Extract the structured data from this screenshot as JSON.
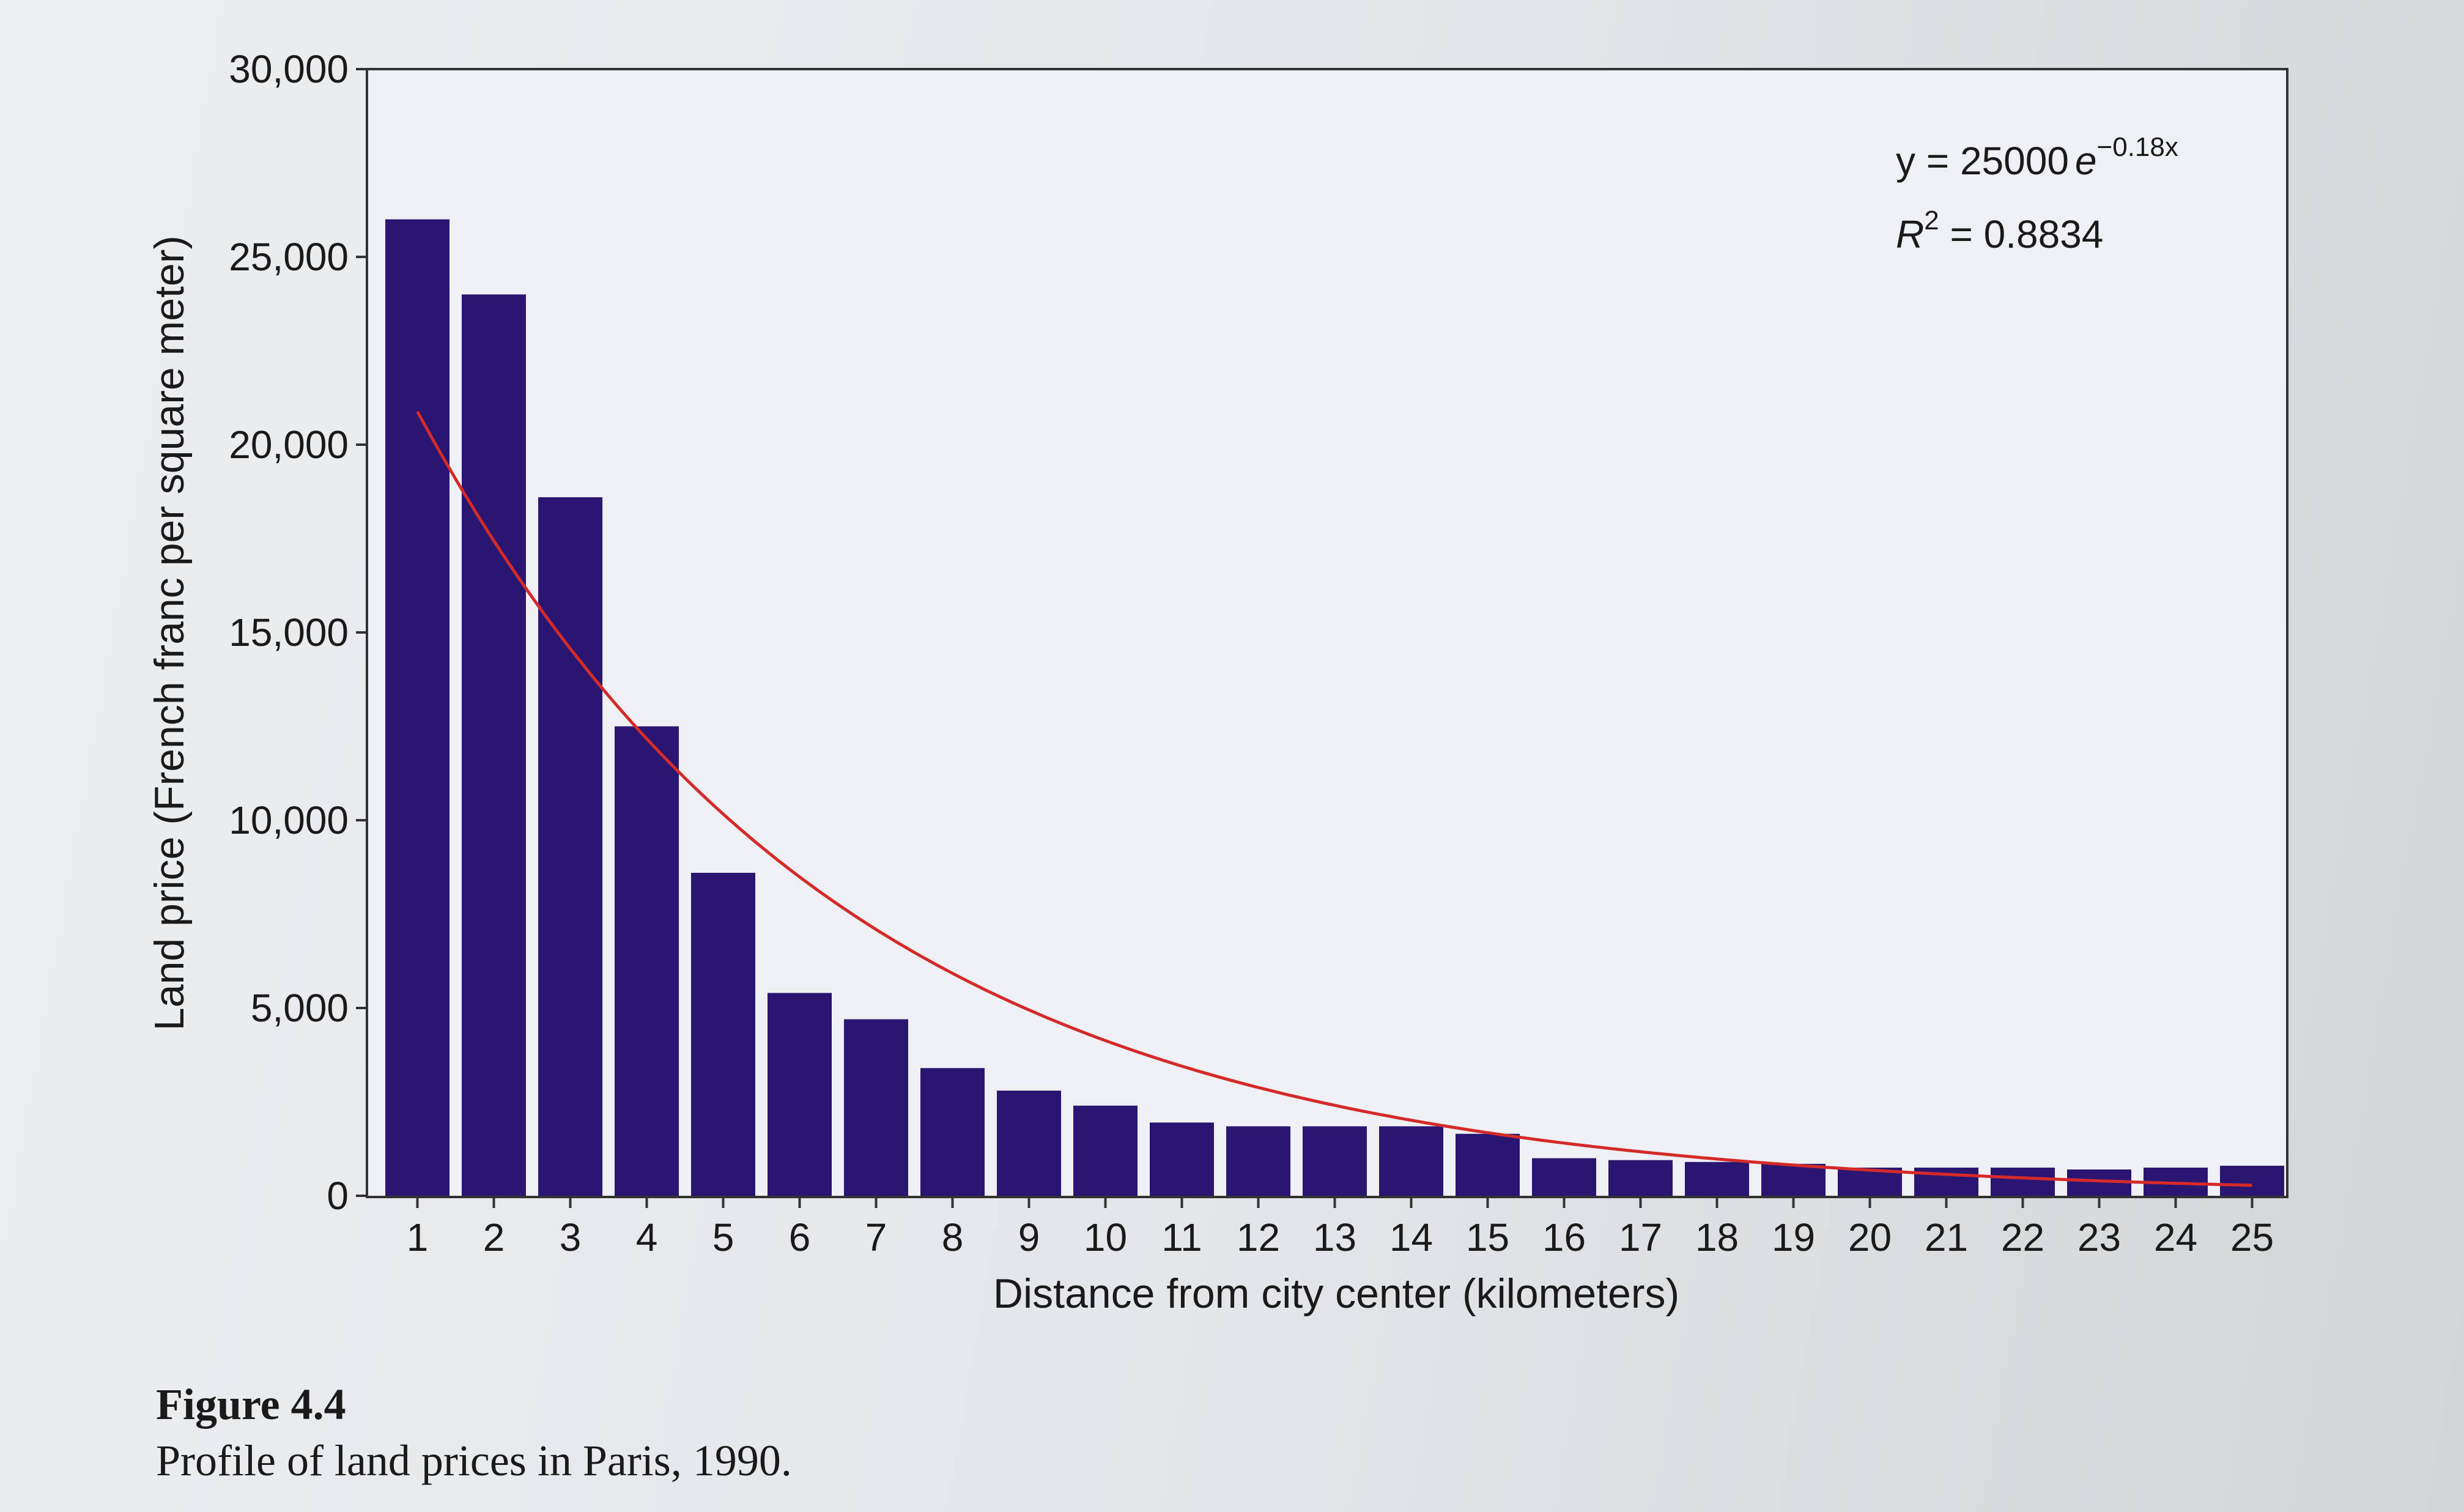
{
  "chart_data": {
    "type": "bar",
    "xlabel": "Distance from city center (kilometers)",
    "ylabel": "Land price (French franc per square meter)",
    "categories": [
      "1",
      "2",
      "3",
      "4",
      "5",
      "6",
      "7",
      "8",
      "9",
      "10",
      "11",
      "12",
      "13",
      "14",
      "15",
      "16",
      "17",
      "18",
      "19",
      "20",
      "21",
      "22",
      "23",
      "24",
      "25"
    ],
    "series": [
      {
        "values": [
          26000,
          24000,
          18600,
          12500,
          8600,
          5400,
          4700,
          3400,
          2800,
          2400,
          1950,
          1850,
          1850,
          1850,
          1650,
          1000,
          950,
          900,
          850,
          750,
          750,
          750,
          700,
          750,
          800
        ]
      }
    ],
    "ylim": [
      0,
      30000
    ],
    "y_ticks": [
      0,
      5000,
      10000,
      15000,
      20000,
      25000,
      30000
    ],
    "y_tick_labels": [
      "0",
      "5,000",
      "10,000",
      "15,000",
      "20,000",
      "25,000",
      "30,000"
    ],
    "trendline": {
      "type": "exponential",
      "equation_lhs": "y = 25000",
      "equation_base": "e",
      "equation_exponent": "−0.18x",
      "r2_label": "R",
      "r2_sup": "2",
      "r2_value": " = 0.8834",
      "a": 25000,
      "b": -0.18,
      "color": "#d42a2a"
    },
    "bar_color": "#2a1670",
    "grid": false,
    "legend": "none"
  },
  "caption": {
    "figure_label": "Figure 4.4",
    "text": "Profile of land prices in Paris, 1990."
  }
}
